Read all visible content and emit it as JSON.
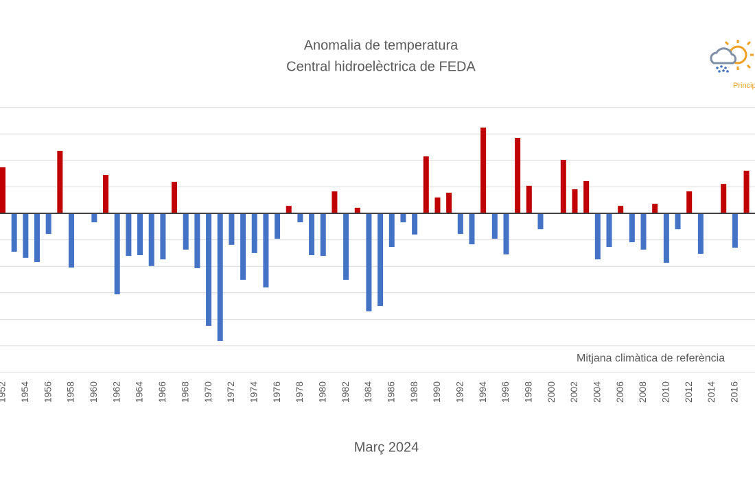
{
  "chart_data": {
    "type": "bar",
    "title": "Anomalia de temperatura",
    "subtitle": "Central hidroelèctrica de FEDA",
    "x_label": "Març 2024",
    "annotation": "Mitjana climàtica de referència",
    "logo_text": "Princip",
    "categories": [
      "1952",
      null,
      "1954",
      null,
      "1956",
      null,
      "1958",
      null,
      "1960",
      null,
      "1962",
      null,
      "1964",
      null,
      "1966",
      null,
      "1968",
      null,
      "1970",
      null,
      "1972",
      null,
      "1974",
      null,
      "1976",
      null,
      "1978",
      null,
      "1980",
      null,
      "1982",
      null,
      "1984",
      null,
      "1986",
      null,
      "1988",
      null,
      "1990",
      null,
      "1992",
      null,
      "1994",
      null,
      "1996",
      null,
      "1998",
      null,
      "2000",
      null,
      "2002",
      null,
      "2004",
      null,
      "2006",
      null,
      "2008",
      null,
      "2010",
      null,
      "2012",
      null,
      "2014",
      null,
      "2016",
      null
    ],
    "values": [
      1.74,
      -1.45,
      -1.68,
      -1.84,
      -0.78,
      2.36,
      -2.05,
      0,
      -0.34,
      1.45,
      -3.06,
      -1.61,
      -1.58,
      -1.99,
      -1.74,
      1.19,
      -1.37,
      -2.07,
      -4.25,
      -4.82,
      -1.19,
      -2.51,
      -1.5,
      -2.8,
      -0.96,
      0.28,
      -0.34,
      -1.58,
      -1.61,
      0.83,
      -2.51,
      0.21,
      -3.7,
      -3.5,
      -1.27,
      -0.34,
      -0.8,
      2.15,
      0.6,
      0.78,
      -0.78,
      -1.17,
      3.24,
      -0.96,
      -1.55,
      2.85,
      1.04,
      -0.6,
      0,
      2.02,
      0.91,
      1.22,
      -1.74,
      -1.27,
      0.28,
      -1.09,
      -1.37,
      0.36,
      -1.87,
      -0.6,
      0.83,
      -1.53,
      0,
      1.11,
      -1.3,
      1.61
    ],
    "positive_color": "#c00000",
    "negative_color": "#4472c4",
    "ylim": [
      -6,
      4
    ],
    "yticks": [
      -6,
      -5,
      -4,
      -3,
      -2,
      -1,
      0,
      1,
      2,
      3,
      4
    ],
    "grid": true
  }
}
